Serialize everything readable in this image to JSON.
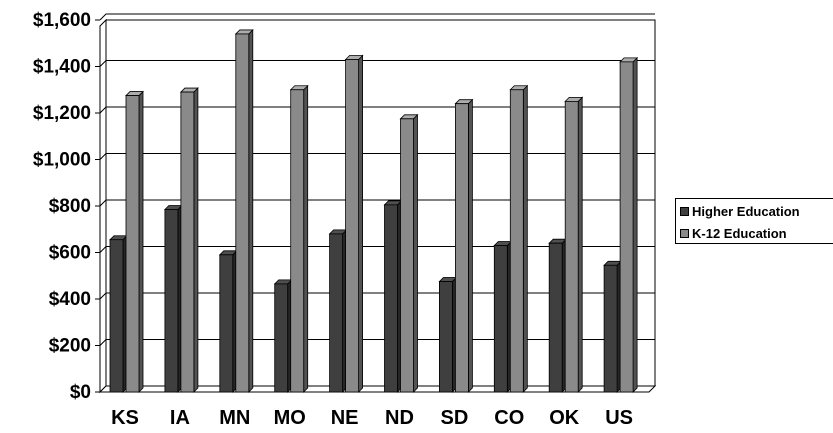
{
  "chart_data": {
    "type": "bar",
    "categories": [
      "KS",
      "IA",
      "MN",
      "MO",
      "NE",
      "ND",
      "SD",
      "CO",
      "OK",
      "US"
    ],
    "series": [
      {
        "name": "Higher Education",
        "values": [
          655,
          785,
          590,
          465,
          680,
          805,
          475,
          630,
          640,
          545
        ],
        "color": "#3f3f3f"
      },
      {
        "name": "K-12 Education",
        "values": [
          1275,
          1290,
          1540,
          1300,
          1430,
          1175,
          1240,
          1300,
          1250,
          1420
        ],
        "color": "#8a8a8a"
      }
    ],
    "y_ticks": [
      "$0",
      "$200",
      "$400",
      "$600",
      "$800",
      "$1,000",
      "$1,200",
      "$1,400",
      "$1,600"
    ],
    "ylim": [
      0,
      1600
    ],
    "grid": true,
    "style": "3d-clustered-column",
    "legend_position": "right"
  }
}
